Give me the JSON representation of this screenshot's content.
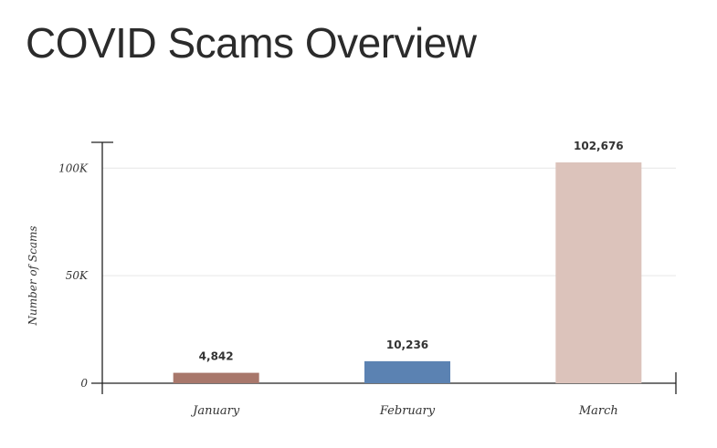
{
  "title": "COVID Scams Overview",
  "chart_data": {
    "type": "bar",
    "categories": [
      "January",
      "February",
      "March"
    ],
    "values": [
      4842,
      10236,
      102676
    ],
    "value_labels": [
      "4,842",
      "10,236",
      "102,676"
    ],
    "colors": [
      "#a8776b",
      "#5b82b2",
      "#dcc3bb"
    ],
    "ylabel": "Number of Scams",
    "xlabel": "",
    "ylim": [
      0,
      112000
    ],
    "yticks": [
      0,
      50000,
      100000
    ],
    "ytick_labels": [
      "0",
      "50K",
      "100K"
    ],
    "grid": true,
    "grid_color": "#e6e6e6",
    "axis_color": "#222222"
  }
}
